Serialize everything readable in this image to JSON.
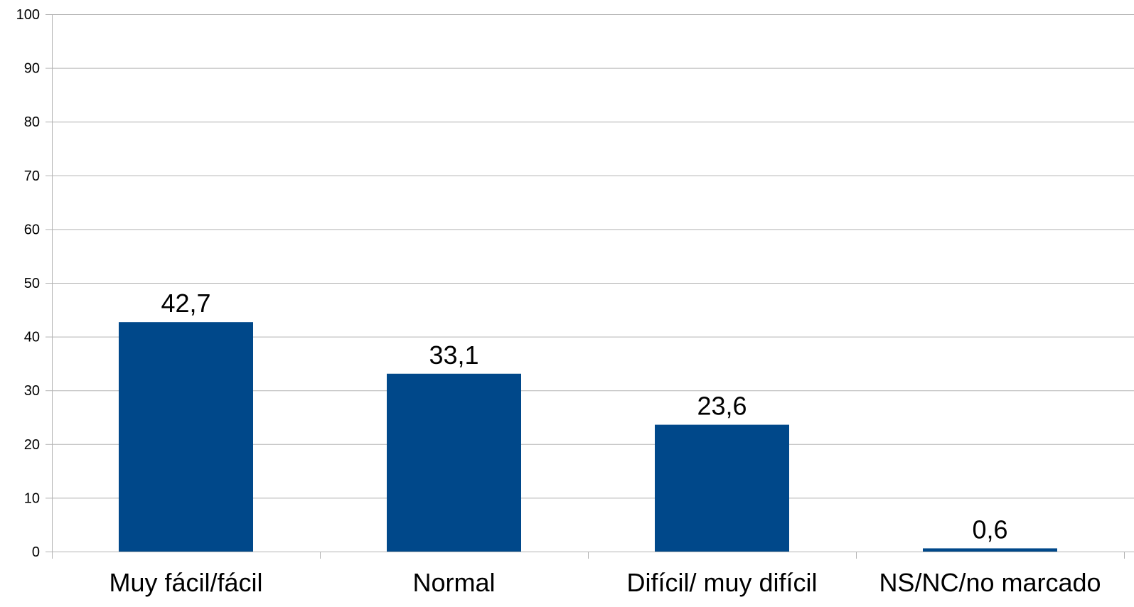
{
  "chart_data": {
    "type": "bar",
    "categories": [
      "Muy fácil/fácil",
      "Normal",
      "Difícil/ muy difícil",
      "NS/NC/no marcado"
    ],
    "values": [
      42.7,
      33.1,
      23.6,
      0.6
    ],
    "data_labels": [
      "42,7",
      "33,1",
      "23,6",
      "0,6"
    ],
    "ylim": [
      0,
      100
    ],
    "y_ticks": [
      0,
      10,
      20,
      30,
      40,
      50,
      60,
      70,
      80,
      90,
      100
    ],
    "title": "",
    "xlabel": "",
    "ylabel": "",
    "grid": true,
    "legend": "none",
    "bar_color": "#00488a",
    "grid_color": "#b3b3b3"
  }
}
